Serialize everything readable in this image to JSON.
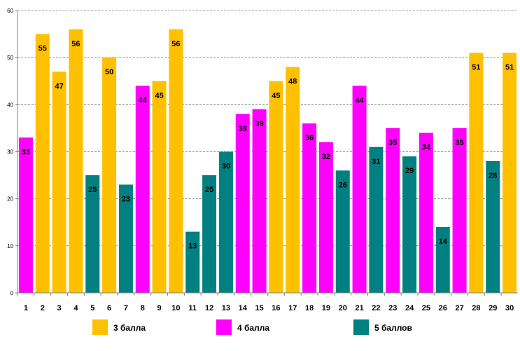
{
  "chart_data": {
    "type": "bar",
    "title": "",
    "xlabel": "",
    "ylabel": "",
    "ylim": [
      0,
      60
    ],
    "yticks": [
      0,
      10,
      20,
      30,
      40,
      50,
      60
    ],
    "grid": true,
    "categories": [
      "1",
      "2",
      "3",
      "4",
      "5",
      "6",
      "7",
      "8",
      "9",
      "10",
      "11",
      "12",
      "13",
      "14",
      "15",
      "16",
      "17",
      "18",
      "19",
      "20",
      "21",
      "22",
      "23",
      "24",
      "25",
      "26",
      "27",
      "28",
      "29",
      "30"
    ],
    "values": [
      33,
      55,
      47,
      56,
      25,
      50,
      23,
      44,
      45,
      56,
      13,
      25,
      30,
      38,
      39,
      45,
      48,
      36,
      32,
      26,
      44,
      31,
      35,
      29,
      34,
      14,
      35,
      51,
      28,
      51
    ],
    "groups": [
      "4",
      "3",
      "3",
      "3",
      "5",
      "3",
      "5",
      "4",
      "3",
      "3",
      "5",
      "5",
      "5",
      "4",
      "4",
      "3",
      "3",
      "4",
      "4",
      "5",
      "4",
      "5",
      "4",
      "5",
      "4",
      "5",
      "4",
      "3",
      "5",
      "3"
    ],
    "legend": [
      {
        "key": "3",
        "label": "3 балла",
        "color": "#FFC000"
      },
      {
        "key": "4",
        "label": "4 балла",
        "color": "#FF00FF"
      },
      {
        "key": "5",
        "label": "5 баллов",
        "color": "#008080"
      }
    ],
    "legend_position": "bottom"
  }
}
